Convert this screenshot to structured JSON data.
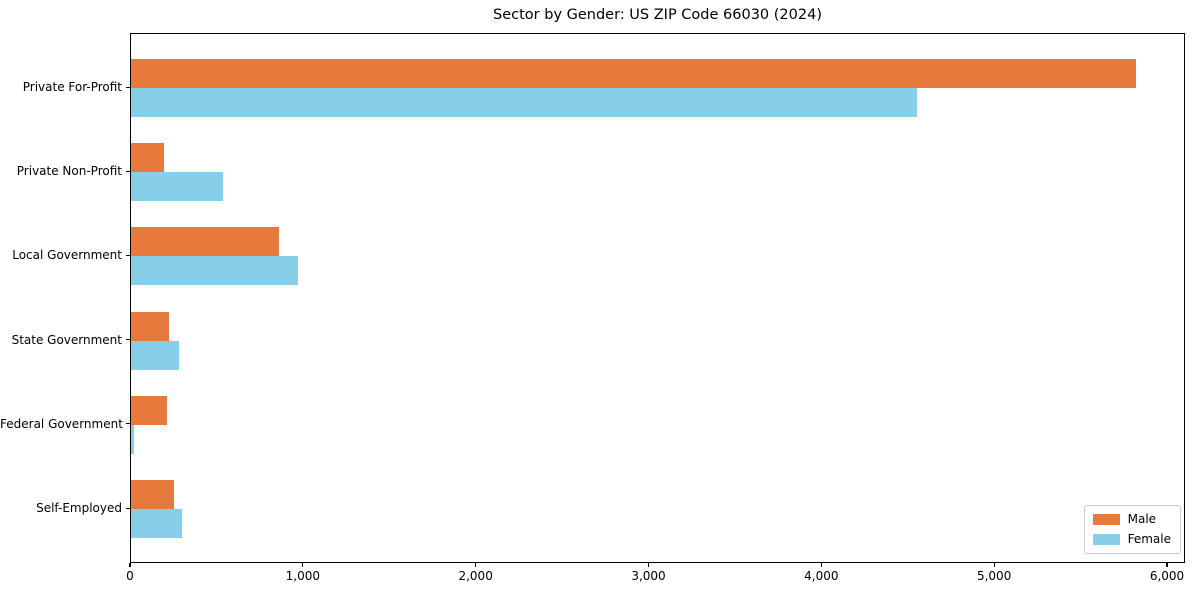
{
  "title": "Sector by Gender: US ZIP Code 66030 (2024)",
  "legend": {
    "position": "lower right",
    "items": [
      {
        "label": "Male",
        "color": "#e8793d"
      },
      {
        "label": "Female",
        "color": "#87ceeb"
      }
    ]
  },
  "chart_data": {
    "type": "bar",
    "orientation": "horizontal",
    "title": "Sector by Gender: US ZIP Code 66030 (2024)",
    "categories": [
      "Private For-Profit",
      "Private Non-Profit",
      "Local Government",
      "State Government",
      "Federal Government",
      "Self-Employed"
    ],
    "series": [
      {
        "name": "Male",
        "color": "#e8793d",
        "values": [
          5815,
          190,
          855,
          220,
          210,
          250
        ]
      },
      {
        "name": "Female",
        "color": "#87ceeb",
        "values": [
          4550,
          530,
          965,
          280,
          15,
          295
        ]
      }
    ],
    "xlabel": "",
    "ylabel": "",
    "xlim": [
      0,
      6104
    ],
    "x_ticks": [
      {
        "label": "0",
        "value": 0
      },
      {
        "label": "1,000",
        "value": 1000
      },
      {
        "label": "2,000",
        "value": 2000
      },
      {
        "label": "3,000",
        "value": 3000
      },
      {
        "label": "4,000",
        "value": 4000
      },
      {
        "label": "5,000",
        "value": 5000
      },
      {
        "label": "6,000",
        "value": 6000
      }
    ],
    "grid": false,
    "legend_position": "lower right",
    "background_color": "#ffffff",
    "bar_group_layout": "male on top, female below, no gap"
  }
}
